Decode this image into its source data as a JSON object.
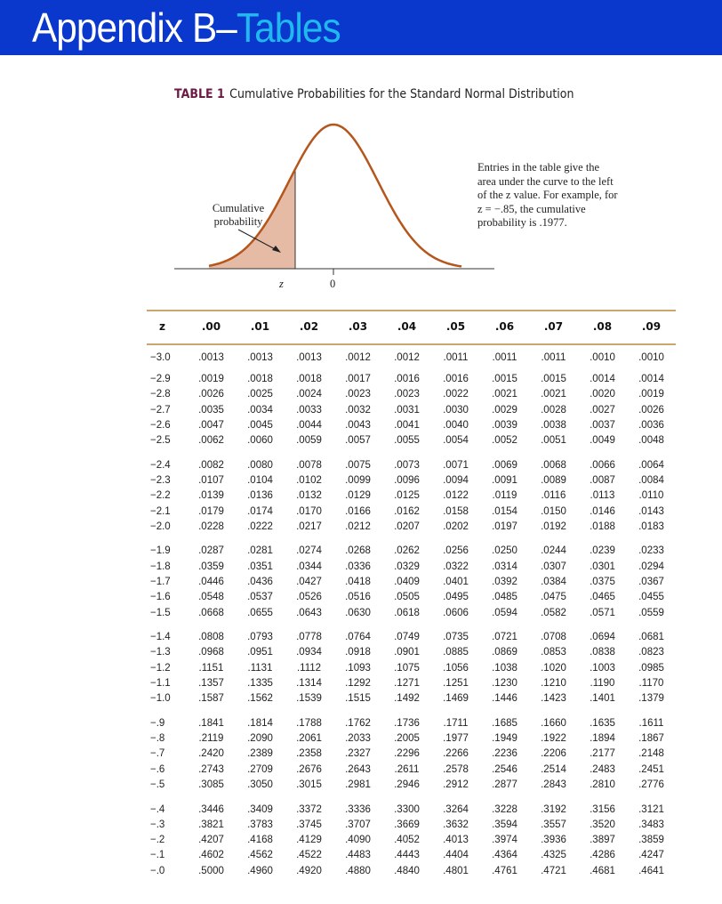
{
  "banner": {
    "title_main": "Appendix B–",
    "title_accent": "Tables",
    "color": "#0A37CC",
    "accent_color": "#1FB8F0"
  },
  "caption": {
    "label": "TABLE 1",
    "text": "Cumulative Probabilities for the Standard Normal Distribution"
  },
  "figure": {
    "curve_color": "#B5561C",
    "shade_color": "#E5BBA5",
    "cumulative_label": "Cumulative probability",
    "note": "Entries in the table give the area under the curve to the left of the z value. For example, for z = −.85, the cumulative probability is .1977.",
    "z_label": "z",
    "zero_label": "0"
  },
  "table": {
    "headers": [
      "z",
      ".00",
      ".01",
      ".02",
      ".03",
      ".04",
      ".05",
      ".06",
      ".07",
      ".08",
      ".09"
    ],
    "groups": [
      [
        {
          "z": "−3.0",
          "v": [
            ".0013",
            ".0013",
            ".0013",
            ".0012",
            ".0012",
            ".0011",
            ".0011",
            ".0011",
            ".0010",
            ".0010"
          ]
        }
      ],
      [
        {
          "z": "−2.9",
          "v": [
            ".0019",
            ".0018",
            ".0018",
            ".0017",
            ".0016",
            ".0016",
            ".0015",
            ".0015",
            ".0014",
            ".0014"
          ]
        },
        {
          "z": "−2.8",
          "v": [
            ".0026",
            ".0025",
            ".0024",
            ".0023",
            ".0023",
            ".0022",
            ".0021",
            ".0021",
            ".0020",
            ".0019"
          ]
        },
        {
          "z": "−2.7",
          "v": [
            ".0035",
            ".0034",
            ".0033",
            ".0032",
            ".0031",
            ".0030",
            ".0029",
            ".0028",
            ".0027",
            ".0026"
          ]
        },
        {
          "z": "−2.6",
          "v": [
            ".0047",
            ".0045",
            ".0044",
            ".0043",
            ".0041",
            ".0040",
            ".0039",
            ".0038",
            ".0037",
            ".0036"
          ]
        },
        {
          "z": "−2.5",
          "v": [
            ".0062",
            ".0060",
            ".0059",
            ".0057",
            ".0055",
            ".0054",
            ".0052",
            ".0051",
            ".0049",
            ".0048"
          ]
        }
      ],
      [
        {
          "z": "−2.4",
          "v": [
            ".0082",
            ".0080",
            ".0078",
            ".0075",
            ".0073",
            ".0071",
            ".0069",
            ".0068",
            ".0066",
            ".0064"
          ]
        },
        {
          "z": "−2.3",
          "v": [
            ".0107",
            ".0104",
            ".0102",
            ".0099",
            ".0096",
            ".0094",
            ".0091",
            ".0089",
            ".0087",
            ".0084"
          ]
        },
        {
          "z": "−2.2",
          "v": [
            ".0139",
            ".0136",
            ".0132",
            ".0129",
            ".0125",
            ".0122",
            ".0119",
            ".0116",
            ".0113",
            ".0110"
          ]
        },
        {
          "z": "−2.1",
          "v": [
            ".0179",
            ".0174",
            ".0170",
            ".0166",
            ".0162",
            ".0158",
            ".0154",
            ".0150",
            ".0146",
            ".0143"
          ]
        },
        {
          "z": "−2.0",
          "v": [
            ".0228",
            ".0222",
            ".0217",
            ".0212",
            ".0207",
            ".0202",
            ".0197",
            ".0192",
            ".0188",
            ".0183"
          ]
        }
      ],
      [
        {
          "z": "−1.9",
          "v": [
            ".0287",
            ".0281",
            ".0274",
            ".0268",
            ".0262",
            ".0256",
            ".0250",
            ".0244",
            ".0239",
            ".0233"
          ]
        },
        {
          "z": "−1.8",
          "v": [
            ".0359",
            ".0351",
            ".0344",
            ".0336",
            ".0329",
            ".0322",
            ".0314",
            ".0307",
            ".0301",
            ".0294"
          ]
        },
        {
          "z": "−1.7",
          "v": [
            ".0446",
            ".0436",
            ".0427",
            ".0418",
            ".0409",
            ".0401",
            ".0392",
            ".0384",
            ".0375",
            ".0367"
          ]
        },
        {
          "z": "−1.6",
          "v": [
            ".0548",
            ".0537",
            ".0526",
            ".0516",
            ".0505",
            ".0495",
            ".0485",
            ".0475",
            ".0465",
            ".0455"
          ]
        },
        {
          "z": "−1.5",
          "v": [
            ".0668",
            ".0655",
            ".0643",
            ".0630",
            ".0618",
            ".0606",
            ".0594",
            ".0582",
            ".0571",
            ".0559"
          ]
        }
      ],
      [
        {
          "z": "−1.4",
          "v": [
            ".0808",
            ".0793",
            ".0778",
            ".0764",
            ".0749",
            ".0735",
            ".0721",
            ".0708",
            ".0694",
            ".0681"
          ]
        },
        {
          "z": "−1.3",
          "v": [
            ".0968",
            ".0951",
            ".0934",
            ".0918",
            ".0901",
            ".0885",
            ".0869",
            ".0853",
            ".0838",
            ".0823"
          ]
        },
        {
          "z": "−1.2",
          "v": [
            ".1151",
            ".1131",
            ".1112",
            ".1093",
            ".1075",
            ".1056",
            ".1038",
            ".1020",
            ".1003",
            ".0985"
          ]
        },
        {
          "z": "−1.1",
          "v": [
            ".1357",
            ".1335",
            ".1314",
            ".1292",
            ".1271",
            ".1251",
            ".1230",
            ".1210",
            ".1190",
            ".1170"
          ]
        },
        {
          "z": "−1.0",
          "v": [
            ".1587",
            ".1562",
            ".1539",
            ".1515",
            ".1492",
            ".1469",
            ".1446",
            ".1423",
            ".1401",
            ".1379"
          ]
        }
      ],
      [
        {
          "z": "−.9",
          "v": [
            ".1841",
            ".1814",
            ".1788",
            ".1762",
            ".1736",
            ".1711",
            ".1685",
            ".1660",
            ".1635",
            ".1611"
          ]
        },
        {
          "z": "−.8",
          "v": [
            ".2119",
            ".2090",
            ".2061",
            ".2033",
            ".2005",
            ".1977",
            ".1949",
            ".1922",
            ".1894",
            ".1867"
          ]
        },
        {
          "z": "−.7",
          "v": [
            ".2420",
            ".2389",
            ".2358",
            ".2327",
            ".2296",
            ".2266",
            ".2236",
            ".2206",
            ".2177",
            ".2148"
          ]
        },
        {
          "z": "−.6",
          "v": [
            ".2743",
            ".2709",
            ".2676",
            ".2643",
            ".2611",
            ".2578",
            ".2546",
            ".2514",
            ".2483",
            ".2451"
          ]
        },
        {
          "z": "−.5",
          "v": [
            ".3085",
            ".3050",
            ".3015",
            ".2981",
            ".2946",
            ".2912",
            ".2877",
            ".2843",
            ".2810",
            ".2776"
          ]
        }
      ],
      [
        {
          "z": "−.4",
          "v": [
            ".3446",
            ".3409",
            ".3372",
            ".3336",
            ".3300",
            ".3264",
            ".3228",
            ".3192",
            ".3156",
            ".3121"
          ]
        },
        {
          "z": "−.3",
          "v": [
            ".3821",
            ".3783",
            ".3745",
            ".3707",
            ".3669",
            ".3632",
            ".3594",
            ".3557",
            ".3520",
            ".3483"
          ]
        },
        {
          "z": "−.2",
          "v": [
            ".4207",
            ".4168",
            ".4129",
            ".4090",
            ".4052",
            ".4013",
            ".3974",
            ".3936",
            ".3897",
            ".3859"
          ]
        },
        {
          "z": "−.1",
          "v": [
            ".4602",
            ".4562",
            ".4522",
            ".4483",
            ".4443",
            ".4404",
            ".4364",
            ".4325",
            ".4286",
            ".4247"
          ]
        },
        {
          "z": "−.0",
          "v": [
            ".5000",
            ".4960",
            ".4920",
            ".4880",
            ".4840",
            ".4801",
            ".4761",
            ".4721",
            ".4681",
            ".4641"
          ]
        }
      ]
    ]
  }
}
